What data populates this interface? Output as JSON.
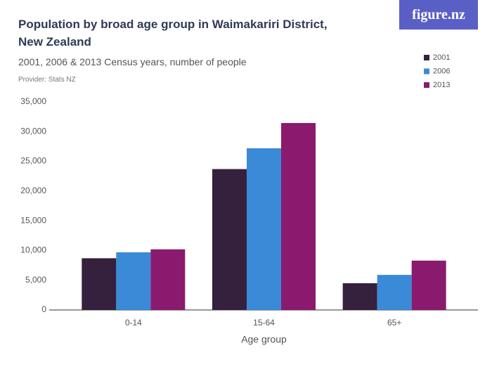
{
  "chart_data": {
    "type": "bar",
    "title": "Population by broad age group in Waimakariri District, New Zealand",
    "subtitle": "2001, 2006 & 2013 Census years, number of people",
    "provider": "Provider: Stats NZ",
    "brand": "figure.nz",
    "x_label": "Age group",
    "categories": [
      "0-14",
      "15-64",
      "65+"
    ],
    "series": [
      {
        "name": "2001",
        "color": "#35203d",
        "values": [
          8700,
          23700,
          4500
        ]
      },
      {
        "name": "2006",
        "color": "#3b8ad8",
        "values": [
          9700,
          27200,
          5900
        ]
      },
      {
        "name": "2013",
        "color": "#8a1a6e",
        "values": [
          10200,
          31450,
          8300
        ]
      }
    ],
    "ylim": [
      0,
      35000
    ],
    "yticks": [
      0,
      {
        "value": 5000,
        "label": "5,000"
      },
      {
        "value": 10000,
        "label": "10,000"
      },
      {
        "value": 15000,
        "label": "15,000"
      },
      {
        "value": 20000,
        "label": "20,000"
      },
      {
        "value": 25000,
        "label": "25,000"
      },
      {
        "value": 30000,
        "label": "30,000"
      },
      {
        "value": 35000,
        "label": "35,000"
      }
    ],
    "legend": "top-right"
  }
}
